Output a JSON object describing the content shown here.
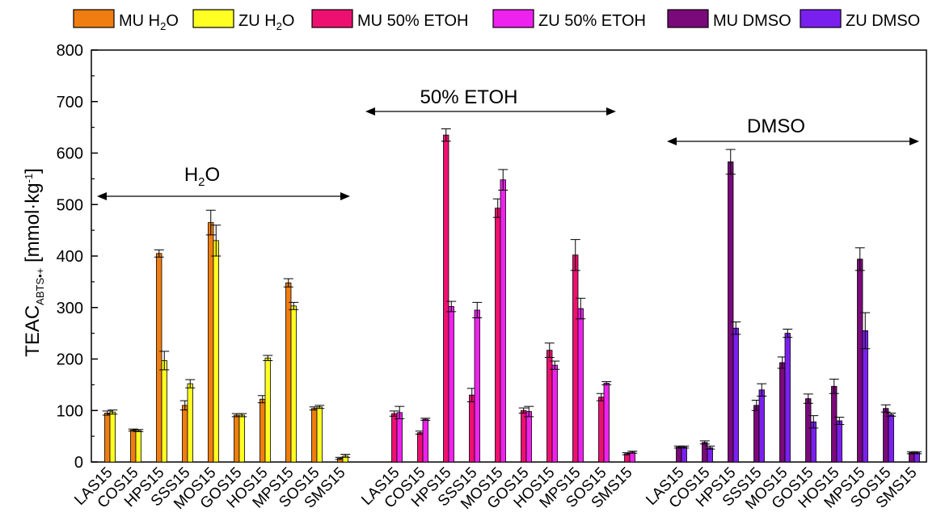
{
  "chart_data": {
    "type": "bar",
    "ylabel": {
      "main": "TEAC",
      "sub": "ABTS•+",
      "unit_open": " [mmol·kg",
      "unit_sup": "-1",
      "unit_close": "]"
    },
    "ylim": [
      0,
      800
    ],
    "yticks": [
      0,
      100,
      200,
      300,
      400,
      500,
      600,
      700,
      800
    ],
    "grid": false,
    "legend_position": "top",
    "groups": [
      {
        "label_main": "H",
        "label_sub": "2",
        "label_tail": "O",
        "categories": [
          "LAS15",
          "COS15",
          "HPS15",
          "SSS15",
          "MOS15",
          "GOS15",
          "HOS15",
          "MPS15",
          "SOS15",
          "SMS15"
        ],
        "series": [
          {
            "name": "MU H2O",
            "color": "#F07D10",
            "values": [
              95,
              62,
              405,
              110,
              465,
              91,
              122,
              348,
              104,
              7
            ],
            "errors": [
              4,
              2,
              7,
              9,
              24,
              3,
              7,
              8,
              3,
              2
            ]
          },
          {
            "name": "ZU H2O",
            "color": "#FFFF22",
            "values": [
              97,
              61,
              197,
              152,
              430,
              91,
              202,
              303,
              107,
              12
            ],
            "errors": [
              4,
              2,
              18,
              8,
              30,
              3,
              5,
              7,
              3,
              3
            ]
          }
        ]
      },
      {
        "label_main": "50% ETOH",
        "label_sub": "",
        "label_tail": "",
        "categories": [
          "LAS15",
          "COS15",
          "HPS15",
          "SSS15",
          "MOS15",
          "GOS15",
          "HOS15",
          "MPS15",
          "SOS15",
          "SMS15"
        ],
        "series": [
          {
            "name": "MU 50% ETOH",
            "color": "#EE1070",
            "values": [
              94,
              57,
              635,
              130,
              493,
              100,
              217,
              402,
              126,
              16
            ],
            "errors": [
              5,
              3,
              12,
              13,
              18,
              5,
              14,
              30,
              7,
              2
            ]
          },
          {
            "name": "ZU 50% ETOH",
            "color": "#EE22EE",
            "values": [
              96,
              83,
              302,
              295,
              548,
              98,
              188,
              298,
              153,
              19
            ],
            "errors": [
              12,
              2,
              10,
              15,
              20,
              10,
              8,
              20,
              3,
              2
            ]
          }
        ]
      },
      {
        "label_main": "DMSO",
        "label_sub": "",
        "label_tail": "",
        "categories": [
          "LAS15",
          "COS15",
          "HPS15",
          "SSS15",
          "MOS15",
          "GOS15",
          "HOS15",
          "MPS15",
          "SOS15",
          "SMS15"
        ],
        "series": [
          {
            "name": "MU DMSO",
            "color": "#7A0A7A",
            "values": [
              29,
              38,
              583,
              110,
              193,
              123,
              147,
              394,
              104,
              18
            ],
            "errors": [
              2,
              3,
              24,
              10,
              11,
              9,
              14,
              22,
              7,
              2
            ]
          },
          {
            "name": "ZU DMSO",
            "color": "#7A20EE",
            "values": [
              29,
              28,
              260,
              140,
              250,
              78,
              80,
              255,
              92,
              18
            ],
            "errors": [
              2,
              3,
              12,
              12,
              8,
              12,
              7,
              35,
              3,
              2
            ]
          }
        ]
      }
    ],
    "legend": [
      {
        "main": "MU H",
        "sub": "2",
        "tail": "O",
        "color": "#F07D10"
      },
      {
        "main": "ZU H",
        "sub": "2",
        "tail": "O",
        "color": "#FFFF22"
      },
      {
        "main": "MU 50% ETOH",
        "sub": "",
        "tail": "",
        "color": "#EE1070"
      },
      {
        "main": "ZU 50% ETOH",
        "sub": "",
        "tail": "",
        "color": "#EE22EE"
      },
      {
        "main": "MU DMSO",
        "sub": "",
        "tail": "",
        "color": "#7A0A7A"
      },
      {
        "main": "ZU DMSO",
        "sub": "",
        "tail": "",
        "color": "#7A20EE"
      }
    ]
  }
}
